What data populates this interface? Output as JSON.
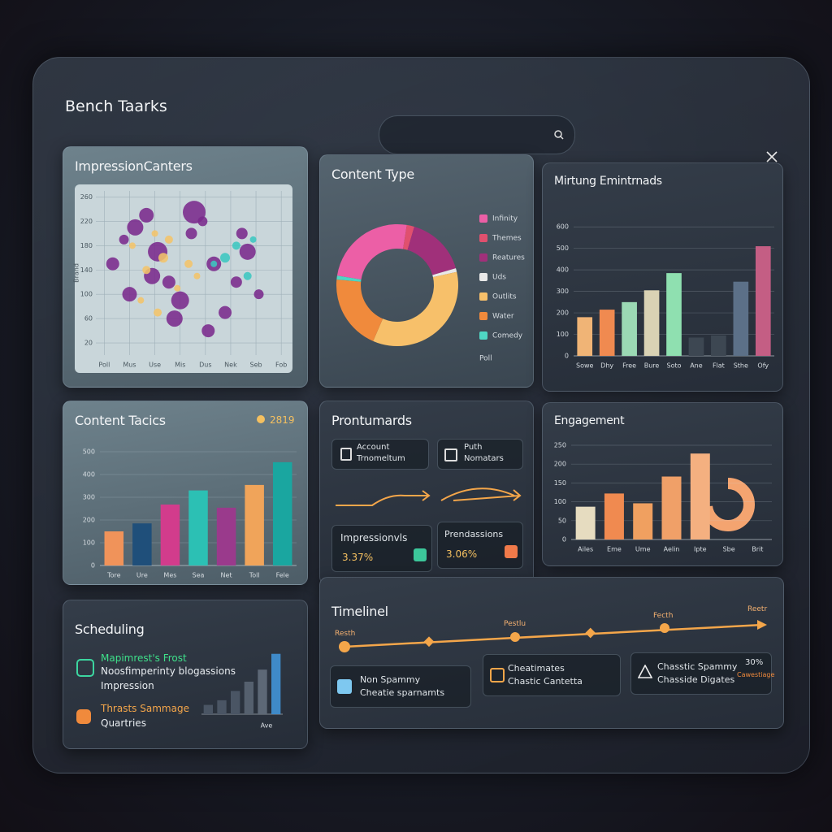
{
  "header": {
    "title": "Bench Taarks"
  },
  "chart_data": [
    {
      "type": "scatter",
      "title": "ImpressionCanters",
      "y_label": "Brand",
      "xlim": [
        0,
        7
      ],
      "xticks": [
        {
          "value": 0.3,
          "label": "Poll"
        },
        {
          "value": 1.2,
          "label": "Mus"
        },
        {
          "value": 2.1,
          "label": "Use"
        },
        {
          "value": 3.0,
          "label": "Mis"
        },
        {
          "value": 3.9,
          "label": "Dus"
        },
        {
          "value": 4.8,
          "label": "Nek"
        },
        {
          "value": 5.7,
          "label": "Seb"
        },
        {
          "value": 6.6,
          "label": "Fob"
        }
      ],
      "ylim": [
        0,
        270
      ],
      "yticks": [
        20,
        60,
        100,
        140,
        180,
        220,
        260
      ],
      "grid": true,
      "series": [
        {
          "color": "#7a2a8c",
          "x": [
            0.6,
            1.0,
            1.4,
            1.8,
            2.2,
            2.6,
            3.0,
            3.4,
            3.8,
            4.2,
            4.6,
            5.0,
            5.4,
            5.8,
            1.2,
            2.8,
            4.0,
            3.5,
            2.0,
            5.2
          ],
          "values": [
            150,
            190,
            210,
            230,
            170,
            120,
            90,
            200,
            220,
            150,
            70,
            120,
            170,
            100,
            100,
            60,
            40,
            235,
            130,
            200
          ],
          "sizes": [
            8,
            6,
            10,
            9,
            12,
            8,
            11,
            7,
            6,
            9,
            8,
            7,
            10,
            6,
            9,
            10,
            8,
            14,
            10,
            7
          ]
        },
        {
          "color": "#f2c46a",
          "x": [
            1.3,
            1.8,
            2.1,
            2.4,
            2.9,
            3.3,
            1.6,
            2.6,
            3.6,
            2.2
          ],
          "values": [
            180,
            140,
            200,
            160,
            110,
            150,
            90,
            190,
            130,
            70
          ],
          "sizes": [
            4,
            5,
            4,
            6,
            4,
            5,
            4,
            5,
            4,
            5
          ]
        },
        {
          "color": "#3cc7c0",
          "x": [
            4.6,
            5.0,
            5.4,
            4.2,
            5.6
          ],
          "values": [
            160,
            180,
            130,
            150,
            190
          ],
          "sizes": [
            6,
            5,
            5,
            4,
            4
          ]
        }
      ]
    },
    {
      "type": "pie",
      "title": "Content Type",
      "labels": [
        "Infinity",
        "Themes",
        "Reatures",
        "Uds",
        "Outlits",
        "Water",
        "Comedy"
      ],
      "values": [
        25,
        2,
        16,
        1,
        35,
        20,
        1
      ],
      "colors": [
        "#ec5fa6",
        "#e0506e",
        "#a0307a",
        "#e8e8e8",
        "#f7c06a",
        "#f08a3c",
        "#4fd6c3"
      ],
      "legend_footer": "Poll"
    },
    {
      "type": "bar",
      "title": "Mirtung Emintrnads",
      "categories": [
        "Sowe",
        "Dhy",
        "Free",
        "Bure",
        "Soto",
        "Ane",
        "Flat",
        "Sthe",
        "Ofy"
      ],
      "values": [
        180,
        215,
        250,
        305,
        385,
        85,
        95,
        345,
        510
      ],
      "colors": [
        "#f0b476",
        "#f08a50",
        "#9bd9b4",
        "#d9d2b4",
        "#8fe0b0",
        "#3d4752",
        "#3d4752",
        "#5c7088",
        "#c45e84"
      ],
      "ylim": [
        0,
        650
      ],
      "yticks": [
        0,
        100,
        200,
        300,
        400,
        500,
        600
      ],
      "grid": true
    },
    {
      "type": "bar",
      "title": "Content Tacics",
      "badge": "2819",
      "categories": [
        "Tore",
        "Ure",
        "Mes",
        "Sea",
        "Net",
        "Toll",
        "Fele"
      ],
      "values": [
        150,
        185,
        268,
        330,
        254,
        354,
        454
      ],
      "colors": [
        "#f0935a",
        "#1f4f7a",
        "#d23c8c",
        "#2cc0b4",
        "#9a3a8c",
        "#f0a45a",
        "#1aa6a0"
      ],
      "ylim": [
        0,
        500
      ],
      "yticks": [
        0,
        100,
        200,
        300,
        400,
        500
      ],
      "grid": true
    },
    {
      "type": "bar",
      "title": "Engagement",
      "categories": [
        "Ailes",
        "Eme",
        "Ume",
        "Aelin",
        "Ipte",
        "Sbe",
        "Brit"
      ],
      "values": [
        87,
        122,
        96,
        167,
        228,
        null,
        null
      ],
      "colors": [
        "#e6dcc0",
        "#f08a50",
        "#f0a060",
        "#f0a068",
        "#f4b080",
        "#f08a50",
        "#f08a50"
      ],
      "ylim": [
        0,
        250
      ],
      "yticks": [
        0,
        50,
        100,
        150,
        200,
        250
      ],
      "grid": true
    },
    {
      "type": "bar",
      "values": [
        10,
        15,
        25,
        35,
        48,
        65
      ],
      "colors": [
        "#4a5564",
        "#4a5564",
        "#4a5564",
        "#55606e",
        "#5d6876",
        "#3f8ac8"
      ],
      "ylim": [
        0,
        70
      ],
      "footer_label": "Ave"
    }
  ],
  "promotions": {
    "title": "Prontumards",
    "cards": [
      {
        "line1": "Account",
        "line2": "Trnomeltum"
      },
      {
        "line1": "Puth",
        "line2": "Nomatars"
      }
    ],
    "metrics": [
      {
        "label": "Impressionvls",
        "value": "3.37%"
      },
      {
        "label": "Prendassions",
        "value": "3.06%"
      }
    ]
  },
  "scheduling": {
    "title": "Scheduling",
    "items": [
      {
        "title": "Mapimrest's Frost",
        "lines": [
          "Noosfimperinty blogassions",
          "Impression"
        ]
      },
      {
        "title": "Thrasts Sammage",
        "lines": [
          "Quartries"
        ]
      }
    ]
  },
  "timeline": {
    "title": "Timelinel",
    "markers": [
      "Resth",
      "Pestlu",
      "Fecth",
      "Reetr"
    ],
    "cards": [
      {
        "line1": "Non Spammy",
        "line2": "Cheatie sparnamts"
      },
      {
        "line1": "Cheatimates",
        "line2": "Chastic Cantetta"
      },
      {
        "line1": "Chasstic Spammy",
        "line2": "Chasside Digates",
        "stat": "30%",
        "stat_label": "Cawestiage"
      }
    ]
  }
}
